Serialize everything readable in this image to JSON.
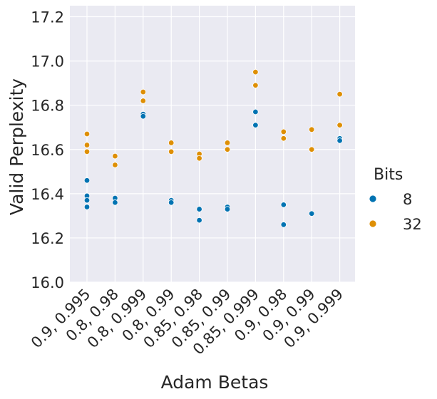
{
  "chart_data": {
    "type": "scatter",
    "xlabel": "Adam Betas",
    "ylabel": "Valid Perplexity",
    "ylim": [
      16.0,
      17.25
    ],
    "yticks": [
      16.0,
      16.2,
      16.4,
      16.6,
      16.8,
      17.0,
      17.2
    ],
    "categories": [
      "0.9, 0.995",
      "0.8, 0.98",
      "0.8, 0.999",
      "0.8, 0.99",
      "0.85, 0.98",
      "0.85, 0.99",
      "0.85, 0.999",
      "0.9, 0.98",
      "0.9, 0.99",
      "0.9, 0.999"
    ],
    "grid": true,
    "legend": {
      "title": "Bits",
      "position": "right"
    },
    "series": [
      {
        "name": "8",
        "color": "#0173b2",
        "points": [
          {
            "x": "0.9, 0.995",
            "y": 16.46
          },
          {
            "x": "0.9, 0.995",
            "y": 16.39
          },
          {
            "x": "0.9, 0.995",
            "y": 16.37
          },
          {
            "x": "0.9, 0.995",
            "y": 16.34
          },
          {
            "x": "0.8, 0.98",
            "y": 16.38
          },
          {
            "x": "0.8, 0.98",
            "y": 16.36
          },
          {
            "x": "0.8, 0.999",
            "y": 16.76
          },
          {
            "x": "0.8, 0.999",
            "y": 16.75
          },
          {
            "x": "0.8, 0.99",
            "y": 16.37
          },
          {
            "x": "0.8, 0.99",
            "y": 16.36
          },
          {
            "x": "0.85, 0.98",
            "y": 16.33
          },
          {
            "x": "0.85, 0.98",
            "y": 16.28
          },
          {
            "x": "0.85, 0.99",
            "y": 16.34
          },
          {
            "x": "0.85, 0.99",
            "y": 16.33
          },
          {
            "x": "0.85, 0.999",
            "y": 16.77
          },
          {
            "x": "0.85, 0.999",
            "y": 16.71
          },
          {
            "x": "0.9, 0.98",
            "y": 16.35
          },
          {
            "x": "0.9, 0.98",
            "y": 16.26
          },
          {
            "x": "0.9, 0.99",
            "y": 16.31
          },
          {
            "x": "0.9, 0.999",
            "y": 16.65
          },
          {
            "x": "0.9, 0.999",
            "y": 16.64
          }
        ]
      },
      {
        "name": "32",
        "color": "#de8f05",
        "points": [
          {
            "x": "0.9, 0.995",
            "y": 16.67
          },
          {
            "x": "0.9, 0.995",
            "y": 16.62
          },
          {
            "x": "0.9, 0.995",
            "y": 16.59
          },
          {
            "x": "0.8, 0.98",
            "y": 16.57
          },
          {
            "x": "0.8, 0.98",
            "y": 16.53
          },
          {
            "x": "0.8, 0.999",
            "y": 16.86
          },
          {
            "x": "0.8, 0.999",
            "y": 16.82
          },
          {
            "x": "0.8, 0.99",
            "y": 16.63
          },
          {
            "x": "0.8, 0.99",
            "y": 16.59
          },
          {
            "x": "0.85, 0.98",
            "y": 16.58
          },
          {
            "x": "0.85, 0.98",
            "y": 16.56
          },
          {
            "x": "0.85, 0.99",
            "y": 16.63
          },
          {
            "x": "0.85, 0.99",
            "y": 16.6
          },
          {
            "x": "0.85, 0.999",
            "y": 16.95
          },
          {
            "x": "0.85, 0.999",
            "y": 16.89
          },
          {
            "x": "0.9, 0.98",
            "y": 16.68
          },
          {
            "x": "0.9, 0.98",
            "y": 16.65
          },
          {
            "x": "0.9, 0.99",
            "y": 16.69
          },
          {
            "x": "0.9, 0.99",
            "y": 16.6
          },
          {
            "x": "0.9, 0.999",
            "y": 16.85
          },
          {
            "x": "0.9, 0.999",
            "y": 16.71
          }
        ]
      }
    ]
  }
}
